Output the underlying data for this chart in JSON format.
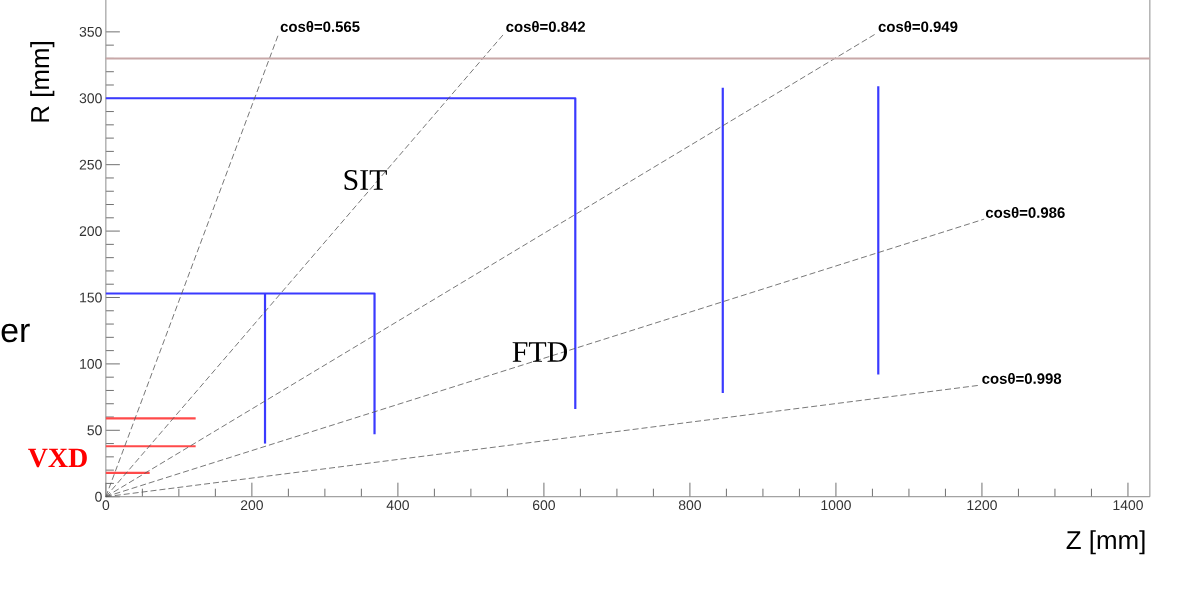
{
  "chart_data": {
    "type": "line",
    "xlabel": "Z [mm]",
    "ylabel": "R [mm]",
    "xlim": [
      0,
      1430
    ],
    "ylim": [
      0,
      384
    ],
    "xticks": [
      0,
      200,
      400,
      600,
      800,
      1000,
      1200,
      1400
    ],
    "yticks": [
      0,
      50,
      100,
      150,
      200,
      250,
      300,
      350
    ],
    "grid": false,
    "marker": "none",
    "series": [
      {
        "color": "#3a3aff",
        "line_style": "solid",
        "x": [
          0,
          643,
          643
        ],
        "values": [
          300,
          300,
          66
        ]
      },
      {
        "color": "#3a3aff",
        "line_style": "solid",
        "x": [
          0,
          368,
          368
        ],
        "values": [
          153,
          153,
          47
        ]
      },
      {
        "color": "#3a3aff",
        "line_style": "solid",
        "x": [
          218,
          218
        ],
        "values": [
          153,
          40
        ]
      },
      {
        "color": "#3a3aff",
        "line_style": "solid",
        "x": [
          845,
          845
        ],
        "values": [
          308,
          78
        ]
      },
      {
        "color": "#3a3aff",
        "line_style": "solid",
        "x": [
          1058,
          1058
        ],
        "values": [
          309,
          92
        ]
      },
      {
        "color": "#ff4a4a",
        "line_style": "solid",
        "x": [
          0,
          123
        ],
        "values": [
          59,
          59
        ]
      },
      {
        "color": "#ff4a4a",
        "line_style": "solid",
        "x": [
          0,
          123
        ],
        "values": [
          38,
          38
        ]
      },
      {
        "color": "#ff4a4a",
        "line_style": "solid",
        "x": [
          0,
          60
        ],
        "values": [
          18,
          18
        ]
      },
      {
        "color": "#555555",
        "line_style": "dashed",
        "x": [
          0,
          237
        ],
        "values": [
          0,
          349
        ]
      },
      {
        "color": "#555555",
        "line_style": "dashed",
        "x": [
          0,
          546
        ],
        "values": [
          0,
          349
        ]
      },
      {
        "color": "#555555",
        "line_style": "dashed",
        "x": [
          0,
          1056
        ],
        "values": [
          0,
          349
        ]
      },
      {
        "color": "#555555",
        "line_style": "dashed",
        "x": [
          0,
          1203
        ],
        "values": [
          0,
          209
        ]
      },
      {
        "color": "#555555",
        "line_style": "dashed",
        "x": [
          0,
          1198
        ],
        "values": [
          0,
          84
        ]
      }
    ],
    "ref_lines": [
      {
        "axis": "y",
        "value": 330,
        "color": "#c8a8a8"
      }
    ],
    "annotations": [
      {
        "text": "cosθ=0.565",
        "x": 237,
        "y": 349
      },
      {
        "text": "cosθ=0.842",
        "x": 546,
        "y": 349
      },
      {
        "text": "cosθ=0.949",
        "x": 1056,
        "y": 349
      },
      {
        "text": "cosθ=0.986",
        "x": 1203,
        "y": 209
      },
      {
        "text": "cosθ=0.998",
        "x": 1198,
        "y": 84
      },
      "SIT",
      "FTD",
      "VXD",
      "er"
    ]
  }
}
